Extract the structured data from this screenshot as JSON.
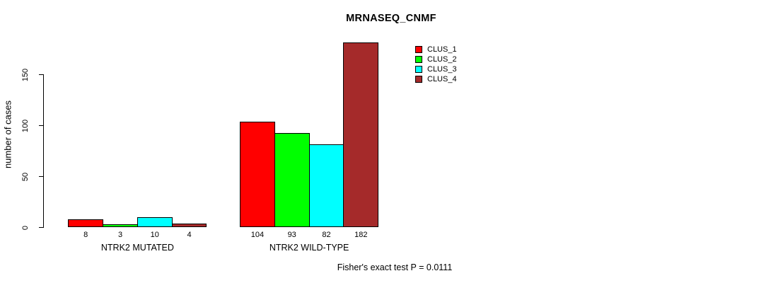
{
  "title": "MRNASEQ_CNMF",
  "y_axis": {
    "label": "number of cases",
    "ticks": [
      0,
      50,
      100,
      150
    ]
  },
  "footer": "Fisher's exact test P = 0.0111",
  "legend": {
    "position": "top-right",
    "items": [
      {
        "label": "CLUS_1",
        "color": "#ff0000"
      },
      {
        "label": "CLUS_2",
        "color": "#00ff00"
      },
      {
        "label": "CLUS_3",
        "color": "#00ffff"
      },
      {
        "label": "CLUS_4",
        "color": "#a52a2a"
      }
    ]
  },
  "chart_data": {
    "type": "bar",
    "title": "MRNASEQ_CNMF",
    "xlabel": "",
    "ylabel": "number of cases",
    "ylim": [
      0,
      150
    ],
    "yticks": [
      0,
      50,
      100,
      150
    ],
    "grid": false,
    "legend_position": "top-right",
    "categories": [
      "NTRK2 MUTATED",
      "NTRK2 WILD-TYPE"
    ],
    "series": [
      {
        "name": "CLUS_1",
        "color": "#ff0000",
        "values": [
          8,
          104
        ]
      },
      {
        "name": "CLUS_2",
        "color": "#00ff00",
        "values": [
          3,
          93
        ]
      },
      {
        "name": "CLUS_3",
        "color": "#00ffff",
        "values": [
          10,
          82
        ]
      },
      {
        "name": "CLUS_4",
        "color": "#a52a2a",
        "values": [
          4,
          182
        ]
      }
    ],
    "bar_value_labels": [
      [
        8,
        3,
        10,
        4
      ],
      [
        104,
        93,
        82,
        182
      ]
    ],
    "annotation": "Fisher's exact test P = 0.0111"
  }
}
